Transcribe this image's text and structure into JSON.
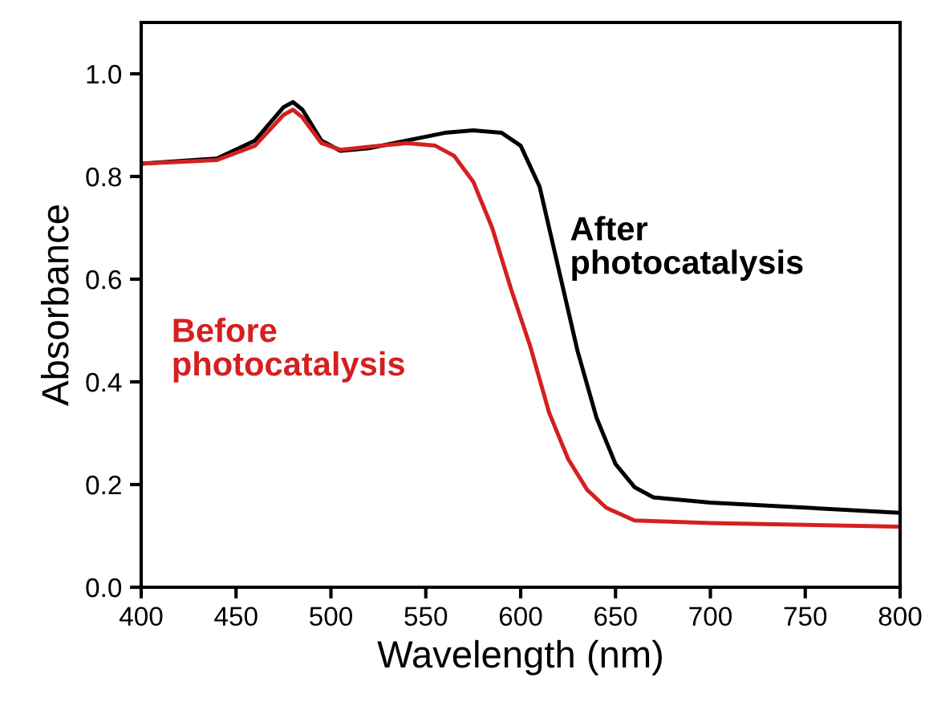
{
  "chart_data": {
    "type": "line",
    "xlabel": "Wavelength (nm)",
    "ylabel": "Absorbance",
    "xlim": [
      400,
      800
    ],
    "ylim": [
      0,
      1.1
    ],
    "xticks": [
      400,
      450,
      500,
      550,
      600,
      650,
      700,
      750,
      800
    ],
    "yticks": [
      {
        "value": 0,
        "label": "0.0"
      },
      {
        "value": 0.2,
        "label": "0.2"
      },
      {
        "value": 0.4,
        "label": "0.4"
      },
      {
        "value": 0.6,
        "label": "0.6"
      },
      {
        "value": 0.8,
        "label": "0.8"
      },
      {
        "value": 1.0,
        "label": "1.0"
      }
    ],
    "grid": false,
    "legend": false,
    "marker": "none",
    "line_style": "solid",
    "series": [
      {
        "name": "After\nphotocatalysis",
        "color": "#000000",
        "x": [
          400,
          420,
          440,
          460,
          475,
          480,
          485,
          495,
          505,
          520,
          540,
          560,
          575,
          590,
          600,
          610,
          620,
          630,
          640,
          650,
          660,
          670,
          700,
          750,
          800
        ],
        "values": [
          0.825,
          0.83,
          0.835,
          0.87,
          0.935,
          0.945,
          0.93,
          0.87,
          0.85,
          0.855,
          0.87,
          0.885,
          0.89,
          0.885,
          0.86,
          0.78,
          0.62,
          0.46,
          0.33,
          0.24,
          0.195,
          0.175,
          0.165,
          0.155,
          0.145
        ]
      },
      {
        "name": "Before\nphotocatalysis",
        "color": "#d42020",
        "x": [
          400,
          440,
          460,
          475,
          480,
          485,
          495,
          505,
          520,
          540,
          555,
          565,
          575,
          585,
          595,
          605,
          615,
          625,
          635,
          645,
          660,
          700,
          800
        ],
        "values": [
          0.825,
          0.832,
          0.86,
          0.92,
          0.93,
          0.915,
          0.865,
          0.852,
          0.858,
          0.865,
          0.86,
          0.84,
          0.79,
          0.7,
          0.58,
          0.47,
          0.34,
          0.25,
          0.19,
          0.155,
          0.13,
          0.125,
          0.118
        ]
      }
    ]
  }
}
